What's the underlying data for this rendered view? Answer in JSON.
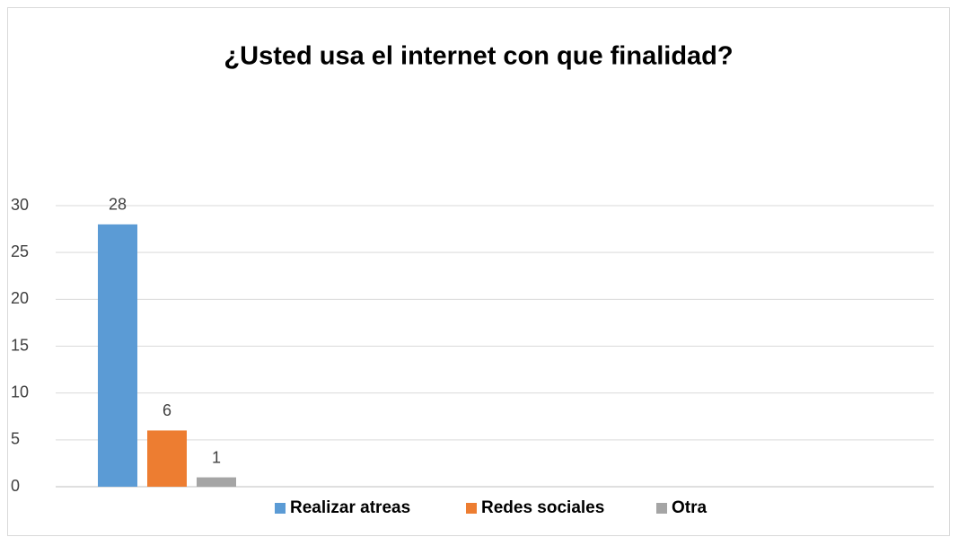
{
  "chart_data": {
    "type": "bar",
    "title": "¿Usted usa el internet con que finalidad?",
    "categories": [
      null
    ],
    "series": [
      {
        "name": "Realizar atreas",
        "color": "#5b9bd5",
        "values": [
          28
        ]
      },
      {
        "name": "Redes sociales",
        "color": "#ed7d31",
        "values": [
          6
        ]
      },
      {
        "name": "Otra",
        "color": "#a5a5a5",
        "values": [
          1
        ]
      }
    ],
    "ylim": [
      0,
      30
    ],
    "yticks": [
      0,
      5,
      10,
      15,
      20,
      25,
      30
    ],
    "grid": true,
    "legend": "bottom"
  }
}
